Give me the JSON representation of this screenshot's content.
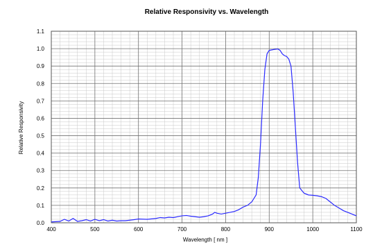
{
  "chart_data": {
    "type": "line",
    "title": "Relative Responsivity  vs.  Wavelength",
    "xlabel": "Wavelength   [ nm ]",
    "ylabel": "Relative Responsivity",
    "xlim": [
      400,
      1100
    ],
    "ylim": [
      0.0,
      1.1
    ],
    "x_ticks": [
      "400",
      "500",
      "600",
      "700",
      "800",
      "900",
      "1000",
      "1100"
    ],
    "y_ticks": [
      "0.0",
      "0.1",
      "0.2",
      "0.3",
      "0.4",
      "0.5",
      "0.6",
      "0.7",
      "0.8",
      "0.9",
      "1.0",
      "1.1"
    ],
    "grid": true,
    "line_color": "#2a2aff",
    "series": [
      {
        "x": [
          400,
          420,
          430,
          440,
          450,
          460,
          470,
          480,
          490,
          500,
          510,
          520,
          530,
          540,
          550,
          560,
          570,
          580,
          590,
          600,
          620,
          640,
          650,
          660,
          670,
          680,
          690,
          700,
          710,
          720,
          730,
          740,
          750,
          760,
          770,
          775,
          780,
          790,
          800,
          810,
          820,
          830,
          840,
          850,
          860,
          870,
          875,
          880,
          885,
          890,
          895,
          900,
          910,
          920,
          925,
          930,
          935,
          940,
          945,
          950,
          955,
          960,
          965,
          970,
          980,
          990,
          1000,
          1010,
          1020,
          1030,
          1040,
          1050,
          1060,
          1070,
          1080,
          1090,
          1100
        ],
        "y": [
          0.005,
          0.008,
          0.02,
          0.01,
          0.025,
          0.008,
          0.012,
          0.018,
          0.01,
          0.02,
          0.012,
          0.018,
          0.01,
          0.015,
          0.01,
          0.012,
          0.012,
          0.015,
          0.018,
          0.022,
          0.02,
          0.025,
          0.03,
          0.028,
          0.032,
          0.03,
          0.035,
          0.04,
          0.042,
          0.038,
          0.035,
          0.032,
          0.035,
          0.04,
          0.05,
          0.06,
          0.055,
          0.05,
          0.055,
          0.06,
          0.065,
          0.075,
          0.09,
          0.1,
          0.12,
          0.16,
          0.26,
          0.45,
          0.7,
          0.88,
          0.97,
          0.99,
          0.995,
          0.998,
          0.99,
          0.97,
          0.96,
          0.955,
          0.94,
          0.9,
          0.75,
          0.55,
          0.35,
          0.2,
          0.17,
          0.16,
          0.158,
          0.155,
          0.15,
          0.14,
          0.12,
          0.1,
          0.085,
          0.07,
          0.06,
          0.05,
          0.04
        ]
      }
    ]
  }
}
